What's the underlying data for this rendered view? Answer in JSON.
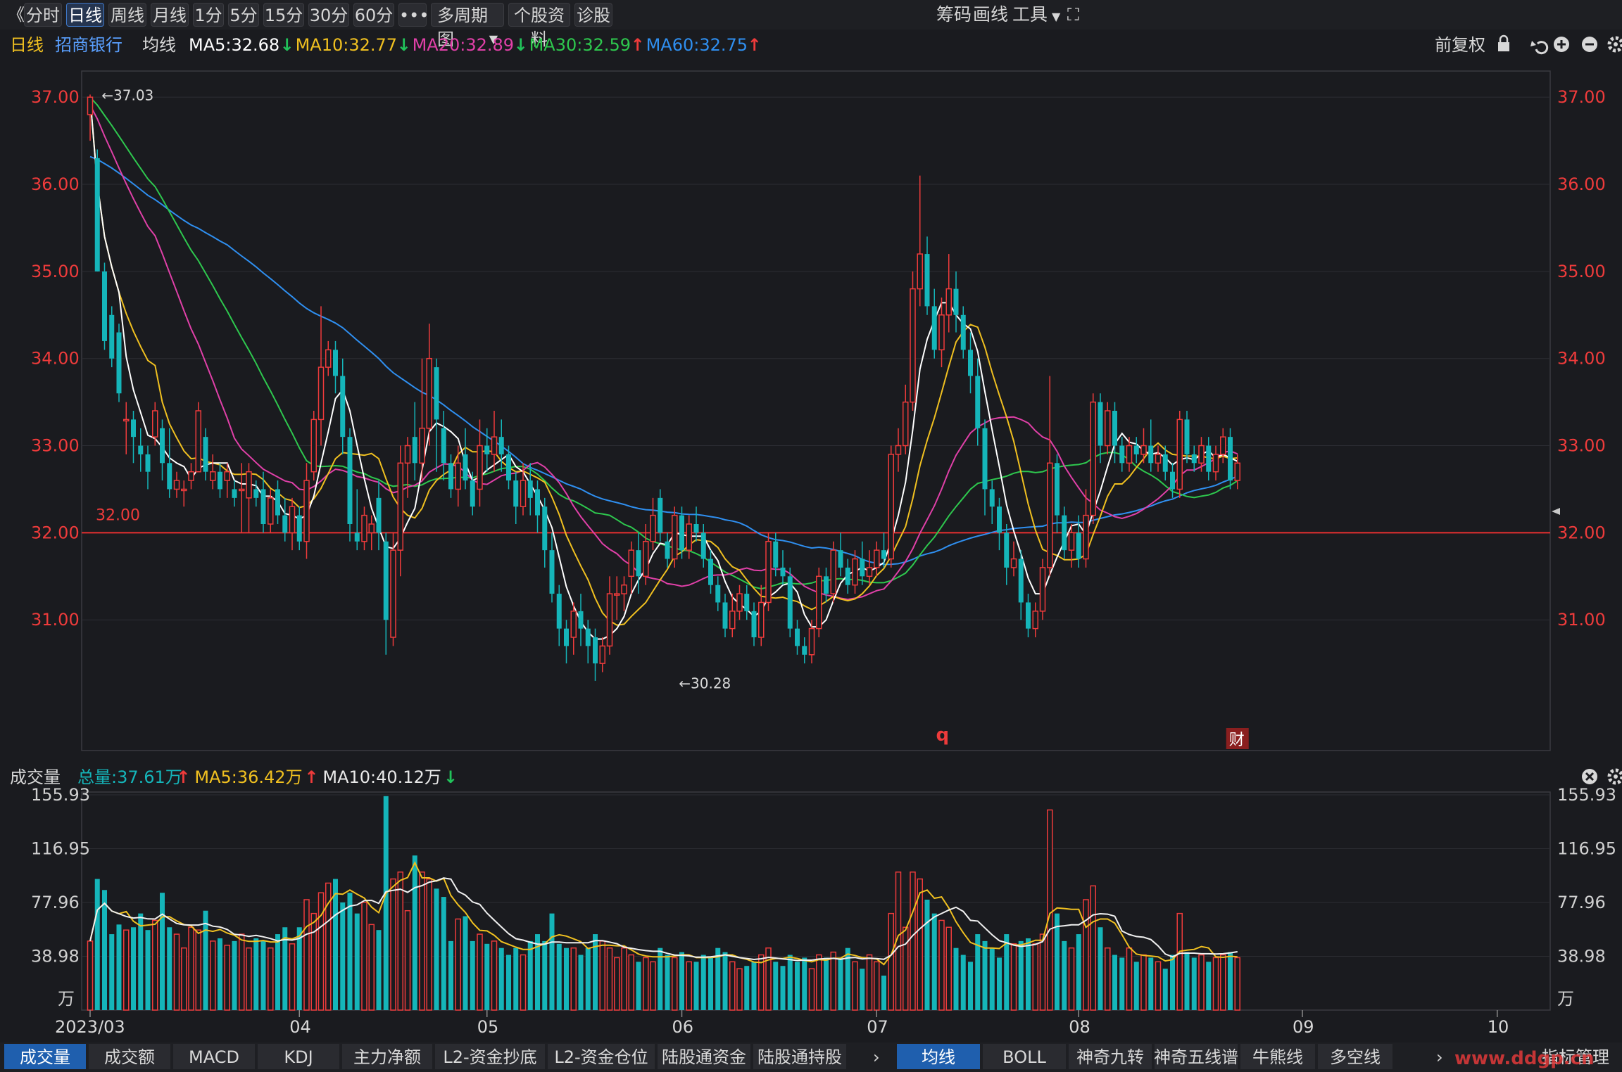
{
  "toolbar": {
    "collapse_label": "《",
    "periods": [
      "分时",
      "日线",
      "周线",
      "月线",
      "1分",
      "5分",
      "15分",
      "30分",
      "60分"
    ],
    "active_period": "日线",
    "more_label": "•••",
    "multi_label": "多周期图",
    "profile_label": "个股资料",
    "diagnose_label": "诊股",
    "right_items": [
      "筹码",
      "画线",
      "工具"
    ]
  },
  "colors": {
    "up": "#ee3b3b",
    "down": "#15b5b9",
    "ma5": "#ffffff",
    "ma10": "#f0c020",
    "ma20": "#e040a8",
    "ma30": "#2ec84e",
    "ma60": "#2f8ff0",
    "axis_text": "#ee3b3b",
    "vol_axis_text": "#d0d0d0",
    "bg": "#1a1b1f",
    "grid": "#2c2d33"
  },
  "price_header": {
    "period": "日线",
    "stock_name": "招商银行",
    "ma_type": "均线",
    "ma_items": [
      {
        "label": "MA5:32.68",
        "arrow": "↓",
        "color": "#ffffff",
        "arrow_color": "#21c25a"
      },
      {
        "label": "MA10:32.77",
        "arrow": "↓",
        "color": "#f0c020",
        "arrow_color": "#21c25a"
      },
      {
        "label": "MA20:32.89",
        "arrow": "↓",
        "color": "#e040a8",
        "arrow_color": "#21c25a"
      },
      {
        "label": "MA30:32.59",
        "arrow": "↑",
        "color": "#2ec84e",
        "arrow_color": "#ee3b3b"
      },
      {
        "label": "MA60:32.75",
        "arrow": "↑",
        "color": "#2f8ff0",
        "arrow_color": "#ee3b3b"
      }
    ],
    "adjust_label": "前复权"
  },
  "volume_header": {
    "title": "成交量",
    "items": [
      {
        "label": "总量:37.61万",
        "arrow": "↑",
        "color": "#15b5b9",
        "arrow_color": "#ee3b3b"
      },
      {
        "label": "MA5:36.42万",
        "arrow": "↑",
        "color": "#f0c020",
        "arrow_color": "#ee3b3b"
      },
      {
        "label": "MA10:40.12万",
        "arrow": "↓",
        "color": "#e8e8e8",
        "arrow_color": "#21c25a"
      }
    ]
  },
  "chart_data": {
    "type": "candlestick",
    "x_labels": [
      {
        "label": "2023/03",
        "index": 0
      },
      {
        "label": "04",
        "index": 29
      },
      {
        "label": "05",
        "index": 55
      },
      {
        "label": "06",
        "index": 82
      },
      {
        "label": "07",
        "index": 109
      },
      {
        "label": "08",
        "index": 137
      },
      {
        "label": "09",
        "index": 168
      },
      {
        "label": "10",
        "index": 195
      }
    ],
    "price_axis": {
      "ticks": [
        "37.00",
        "36.00",
        "35.00",
        "34.00",
        "33.00",
        "32.00",
        "31.00"
      ],
      "ylim": [
        29.5,
        37.3
      ]
    },
    "reference_line": {
      "value": 32.0,
      "label": "32.00"
    },
    "annotations": [
      {
        "label": "37.03",
        "index": 1,
        "value": 37.03
      },
      {
        "label": "30.28",
        "index": 81,
        "value": 30.28
      }
    ],
    "markers": [
      {
        "label": "q",
        "index": 118
      },
      {
        "label": "财",
        "index": 159
      }
    ],
    "volume_axis": {
      "ticks": [
        "155.93",
        "116.95",
        "77.96",
        "38.98"
      ],
      "unit": "万",
      "ylim": [
        0,
        155.93
      ]
    },
    "candles": [
      [
        36.8,
        37.0,
        36.5,
        37.03,
        50
      ],
      [
        36.3,
        35.0,
        35.0,
        36.4,
        95
      ],
      [
        35.0,
        34.2,
        34.1,
        35.1,
        87
      ],
      [
        34.5,
        34.0,
        33.9,
        34.6,
        55
      ],
      [
        34.3,
        33.6,
        33.5,
        34.4,
        62
      ],
      [
        33.3,
        33.3,
        32.9,
        33.5,
        58
      ],
      [
        33.3,
        33.1,
        32.8,
        33.4,
        60
      ],
      [
        33.0,
        32.9,
        32.7,
        33.2,
        70
      ],
      [
        32.9,
        32.7,
        32.5,
        33.0,
        58
      ],
      [
        33.1,
        33.4,
        33.0,
        33.5,
        65
      ],
      [
        33.2,
        32.8,
        32.6,
        33.3,
        85
      ],
      [
        32.8,
        32.5,
        32.4,
        33.2,
        60
      ],
      [
        32.5,
        32.6,
        32.4,
        32.7,
        55
      ],
      [
        32.5,
        32.5,
        32.3,
        32.6,
        45
      ],
      [
        32.6,
        32.7,
        32.5,
        32.8,
        60
      ],
      [
        32.7,
        33.4,
        32.7,
        33.5,
        58
      ],
      [
        33.1,
        32.7,
        32.6,
        33.2,
        72
      ],
      [
        32.6,
        32.7,
        32.5,
        32.9,
        50
      ],
      [
        32.7,
        32.5,
        32.4,
        32.8,
        52
      ],
      [
        32.6,
        32.7,
        32.4,
        32.8,
        47
      ],
      [
        32.5,
        32.4,
        32.3,
        32.6,
        50
      ],
      [
        32.5,
        32.5,
        32.0,
        32.8,
        55
      ],
      [
        32.4,
        32.7,
        32.0,
        32.8,
        45
      ],
      [
        32.5,
        32.4,
        32.3,
        32.6,
        52
      ],
      [
        32.5,
        32.1,
        32.0,
        32.7,
        50
      ],
      [
        32.1,
        32.4,
        32.0,
        32.5,
        45
      ],
      [
        32.5,
        32.2,
        32.1,
        32.6,
        55
      ],
      [
        32.2,
        32.0,
        31.9,
        32.4,
        60
      ],
      [
        32.0,
        32.3,
        31.8,
        32.4,
        48
      ],
      [
        32.2,
        31.9,
        31.8,
        32.3,
        60
      ],
      [
        31.9,
        32.6,
        31.7,
        32.8,
        80
      ],
      [
        32.7,
        33.3,
        32.6,
        33.4,
        70
      ],
      [
        33.3,
        33.9,
        33.0,
        34.6,
        85
      ],
      [
        33.9,
        34.1,
        33.8,
        34.2,
        92
      ],
      [
        34.1,
        33.8,
        33.6,
        34.2,
        95
      ],
      [
        33.8,
        33.1,
        32.9,
        34.0,
        78
      ],
      [
        33.1,
        32.1,
        31.9,
        33.2,
        85
      ],
      [
        32.0,
        31.9,
        31.8,
        32.5,
        70
      ],
      [
        31.9,
        32.2,
        31.8,
        32.3,
        78
      ],
      [
        32.0,
        32.1,
        31.8,
        32.2,
        62
      ],
      [
        32.4,
        32.0,
        31.8,
        32.6,
        58
      ],
      [
        31.9,
        31.0,
        30.6,
        32.0,
        155
      ],
      [
        30.8,
        31.8,
        30.7,
        32.0,
        95
      ],
      [
        31.8,
        32.8,
        31.5,
        33.0,
        100
      ],
      [
        32.8,
        33.0,
        32.4,
        33.1,
        72
      ],
      [
        33.1,
        32.8,
        32.6,
        33.5,
        112
      ],
      [
        32.8,
        33.2,
        32.6,
        34.0,
        100
      ],
      [
        33.2,
        34.0,
        33.0,
        34.4,
        95
      ],
      [
        33.9,
        33.3,
        32.7,
        34.0,
        88
      ],
      [
        33.2,
        32.8,
        32.6,
        33.4,
        82
      ],
      [
        32.8,
        32.5,
        32.4,
        32.9,
        50
      ],
      [
        32.5,
        32.8,
        32.3,
        33.0,
        66
      ],
      [
        32.9,
        32.6,
        32.5,
        33.2,
        68
      ],
      [
        32.6,
        32.3,
        32.2,
        32.7,
        50
      ],
      [
        32.5,
        33.0,
        32.3,
        33.3,
        55
      ],
      [
        33.0,
        32.9,
        32.7,
        33.2,
        48
      ],
      [
        32.9,
        33.1,
        32.7,
        33.4,
        50
      ],
      [
        33.1,
        32.9,
        32.7,
        33.3,
        45
      ],
      [
        32.9,
        32.6,
        32.5,
        33.0,
        40
      ],
      [
        32.6,
        32.3,
        32.1,
        32.7,
        45
      ],
      [
        32.3,
        32.6,
        32.2,
        32.8,
        40
      ],
      [
        32.6,
        32.4,
        32.2,
        32.8,
        50
      ],
      [
        32.5,
        32.2,
        32.0,
        32.6,
        55
      ],
      [
        32.3,
        31.8,
        31.6,
        32.4,
        50
      ],
      [
        31.8,
        31.3,
        31.2,
        32.0,
        70
      ],
      [
        31.3,
        30.9,
        30.7,
        31.4,
        48
      ],
      [
        30.9,
        30.7,
        30.5,
        31.0,
        45
      ],
      [
        30.8,
        31.1,
        30.6,
        31.2,
        45
      ],
      [
        31.1,
        30.9,
        30.7,
        31.3,
        40
      ],
      [
        30.9,
        30.7,
        30.5,
        31.0,
        45
      ],
      [
        30.8,
        30.5,
        30.3,
        30.9,
        55
      ],
      [
        30.5,
        30.7,
        30.4,
        30.8,
        50
      ],
      [
        30.7,
        31.3,
        30.6,
        31.5,
        45
      ],
      [
        31.3,
        31.3,
        31.0,
        31.5,
        38
      ],
      [
        31.3,
        31.4,
        31.1,
        31.5,
        45
      ],
      [
        31.5,
        31.8,
        31.3,
        31.9,
        40
      ],
      [
        31.8,
        31.5,
        31.3,
        32.0,
        35
      ],
      [
        31.5,
        31.9,
        31.4,
        32.1,
        38
      ],
      [
        31.9,
        32.2,
        31.8,
        32.4,
        35
      ],
      [
        32.4,
        32.0,
        31.9,
        32.5,
        45
      ],
      [
        31.9,
        31.7,
        31.6,
        32.0,
        40
      ],
      [
        31.7,
        32.2,
        31.6,
        32.3,
        38
      ],
      [
        32.2,
        31.8,
        31.7,
        32.3,
        42
      ],
      [
        31.8,
        32.1,
        31.7,
        32.2,
        35
      ],
      [
        32.1,
        32.0,
        31.9,
        32.3,
        35
      ],
      [
        32.0,
        31.7,
        31.6,
        32.1,
        40
      ],
      [
        31.7,
        31.4,
        31.3,
        31.8,
        38
      ],
      [
        31.4,
        31.2,
        31.1,
        31.5,
        45
      ],
      [
        31.2,
        30.9,
        30.8,
        31.3,
        42
      ],
      [
        30.9,
        31.1,
        30.8,
        31.3,
        35
      ],
      [
        31.1,
        31.3,
        31.0,
        31.4,
        30
      ],
      [
        31.3,
        31.1,
        31.0,
        31.4,
        32
      ],
      [
        31.1,
        30.8,
        30.7,
        31.2,
        35
      ],
      [
        30.8,
        31.2,
        30.7,
        31.4,
        40
      ],
      [
        31.2,
        31.9,
        31.1,
        32.0,
        45
      ],
      [
        31.9,
        31.6,
        31.5,
        32.0,
        35
      ],
      [
        31.6,
        31.5,
        31.4,
        31.8,
        32
      ],
      [
        31.5,
        30.9,
        30.8,
        31.6,
        40
      ],
      [
        30.9,
        30.7,
        30.6,
        31.0,
        35
      ],
      [
        30.7,
        30.6,
        30.5,
        30.8,
        38
      ],
      [
        30.6,
        30.9,
        30.5,
        31.0,
        30
      ],
      [
        30.9,
        31.5,
        30.8,
        31.6,
        40
      ],
      [
        31.5,
        31.3,
        31.2,
        31.6,
        38
      ],
      [
        31.3,
        31.8,
        31.2,
        31.9,
        42
      ],
      [
        31.8,
        31.6,
        31.5,
        32.0,
        38
      ],
      [
        31.6,
        31.4,
        31.3,
        31.7,
        45
      ],
      [
        31.4,
        31.7,
        31.3,
        31.8,
        35
      ],
      [
        31.7,
        31.5,
        31.4,
        31.9,
        30
      ],
      [
        31.5,
        31.6,
        31.4,
        31.8,
        40
      ],
      [
        31.6,
        31.8,
        31.5,
        31.9,
        35
      ],
      [
        31.8,
        31.7,
        31.6,
        32.0,
        25
      ],
      [
        31.7,
        32.9,
        31.6,
        33.0,
        70
      ],
      [
        32.9,
        33.0,
        32.7,
        33.2,
        100
      ],
      [
        33.0,
        33.5,
        32.9,
        33.7,
        60
      ],
      [
        33.5,
        34.8,
        33.4,
        35.0,
        100
      ],
      [
        34.8,
        35.2,
        34.6,
        36.1,
        95
      ],
      [
        35.2,
        34.6,
        34.5,
        35.4,
        80
      ],
      [
        34.6,
        34.1,
        34.0,
        34.8,
        70
      ],
      [
        34.1,
        34.5,
        33.9,
        34.7,
        65
      ],
      [
        34.5,
        34.8,
        34.3,
        35.2,
        60
      ],
      [
        34.8,
        34.5,
        34.3,
        35.0,
        45
      ],
      [
        34.5,
        34.1,
        34.0,
        34.6,
        40
      ],
      [
        34.1,
        33.8,
        33.6,
        34.3,
        35
      ],
      [
        33.8,
        33.2,
        33.0,
        34.0,
        55
      ],
      [
        33.2,
        32.5,
        32.2,
        33.3,
        50
      ],
      [
        32.5,
        32.3,
        32.1,
        32.6,
        45
      ],
      [
        32.3,
        32.0,
        31.8,
        32.4,
        38
      ],
      [
        32.0,
        31.6,
        31.4,
        32.1,
        55
      ],
      [
        31.6,
        31.7,
        31.5,
        31.9,
        48
      ],
      [
        31.7,
        31.2,
        31.0,
        31.8,
        50
      ],
      [
        31.2,
        30.9,
        30.8,
        31.3,
        52
      ],
      [
        30.9,
        31.1,
        30.8,
        31.2,
        48
      ],
      [
        31.1,
        31.6,
        31.0,
        31.7,
        55
      ],
      [
        31.6,
        32.8,
        31.5,
        33.8,
        145
      ],
      [
        32.8,
        32.2,
        32.0,
        32.9,
        70
      ],
      [
        32.2,
        31.8,
        31.7,
        32.3,
        50
      ],
      [
        31.8,
        32.0,
        31.6,
        32.1,
        45
      ],
      [
        32.0,
        31.7,
        31.6,
        32.2,
        55
      ],
      [
        31.7,
        32.2,
        31.6,
        32.5,
        80
      ],
      [
        32.2,
        33.5,
        32.1,
        33.6,
        90
      ],
      [
        33.5,
        33.0,
        32.8,
        33.6,
        60
      ],
      [
        33.0,
        33.4,
        32.9,
        33.5,
        45
      ],
      [
        33.4,
        33.0,
        32.8,
        33.5,
        40
      ],
      [
        33.0,
        32.8,
        32.7,
        33.1,
        38
      ],
      [
        32.8,
        33.0,
        32.7,
        33.1,
        45
      ],
      [
        33.0,
        32.9,
        32.8,
        33.1,
        35
      ],
      [
        32.9,
        33.0,
        32.8,
        33.2,
        40
      ],
      [
        33.0,
        32.8,
        32.7,
        33.3,
        38
      ],
      [
        32.8,
        32.9,
        32.7,
        33.0,
        35
      ],
      [
        32.9,
        32.7,
        32.6,
        33.0,
        30
      ],
      [
        32.7,
        32.5,
        32.4,
        32.8,
        40
      ],
      [
        32.5,
        33.3,
        32.4,
        33.4,
        70
      ],
      [
        33.3,
        32.9,
        32.8,
        33.4,
        42
      ],
      [
        32.9,
        32.8,
        32.7,
        33.0,
        38
      ],
      [
        32.8,
        33.0,
        32.7,
        33.1,
        40
      ],
      [
        33.0,
        32.7,
        32.6,
        33.1,
        35
      ],
      [
        32.7,
        32.9,
        32.6,
        33.0,
        38
      ],
      [
        32.9,
        33.1,
        32.8,
        33.2,
        40
      ],
      [
        33.1,
        32.6,
        32.5,
        33.2,
        42
      ],
      [
        32.6,
        32.8,
        32.5,
        32.9,
        38
      ]
    ]
  },
  "bottom_tabs": {
    "left": [
      "成交量",
      "成交额",
      "MACD",
      "KDJ",
      "主力净额",
      "L2-资金抄底",
      "L2-资金仓位",
      "陆股通资金",
      "陆股通持股"
    ],
    "left_active": "成交量",
    "right": [
      "均线",
      "BOLL",
      "神奇九转",
      "神奇五线谱",
      "牛熊线",
      "多空线"
    ],
    "right_active": "均线",
    "manage_label": "指标管理",
    "watermark": "www.ddgp.cn"
  }
}
